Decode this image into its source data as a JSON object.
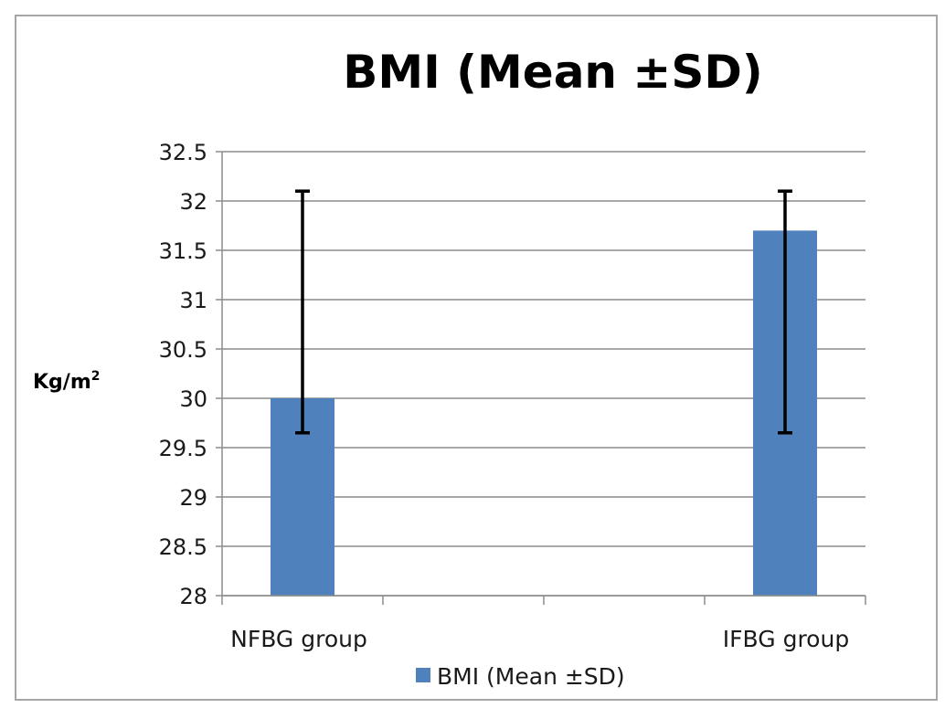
{
  "chart_data": {
    "type": "bar",
    "title": "BMI (Mean ±SD)",
    "ylabel_main": "Kg/m",
    "ylabel_sup": "2",
    "xlabel": "",
    "categories": [
      "NFBG group",
      "IFBG group"
    ],
    "series": [
      {
        "name": "BMI (Mean ±SD)",
        "values": [
          30,
          31.7
        ],
        "error_low": [
          29.65,
          29.65
        ],
        "error_high": [
          32.1,
          32.1
        ],
        "color": "#4f81bd"
      }
    ],
    "ylim": [
      28,
      32.5
    ],
    "yticks": [
      "32.5",
      "32",
      "31.5",
      "31",
      "30.5",
      "30",
      "29.5",
      "29",
      "28.5",
      "28"
    ],
    "grid": true,
    "legend": "bottom"
  }
}
